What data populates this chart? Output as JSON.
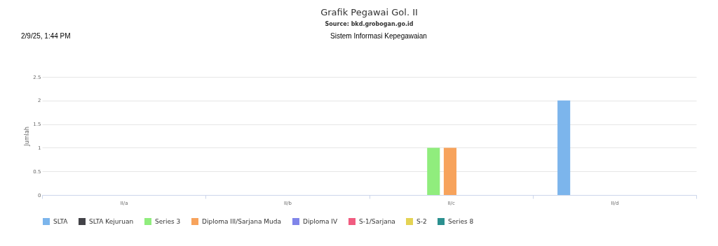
{
  "chart_data": {
    "type": "bar",
    "title": "Grafik Pegawai Gol. II",
    "subtitle": "Source: bkd.grobogan.go.id",
    "ylabel": "Jumlah",
    "annotations": [
      "2/9/25, 1:44 PM",
      "Sistem Informasi Kepegawaian"
    ],
    "categories": [
      "II/a",
      "II/b",
      "II/c",
      "II/d"
    ],
    "series": [
      {
        "name": "SLTA",
        "color": "#7cb5ec",
        "values": [
          0,
          0,
          0,
          2
        ]
      },
      {
        "name": "SLTA Kejuruan",
        "color": "#434348",
        "values": [
          0,
          0,
          0,
          0
        ]
      },
      {
        "name": "Series 3",
        "color": "#90ed7d",
        "values": [
          0,
          0,
          1,
          0
        ]
      },
      {
        "name": "Diploma III/Sarjana Muda",
        "color": "#f7a35c",
        "values": [
          0,
          0,
          1,
          0
        ]
      },
      {
        "name": "Diploma IV",
        "color": "#8085e9",
        "values": [
          0,
          0,
          0,
          0
        ]
      },
      {
        "name": "S-1/Sarjana",
        "color": "#f15c80",
        "values": [
          0,
          0,
          0,
          0
        ]
      },
      {
        "name": "S-2",
        "color": "#e4d354",
        "values": [
          0,
          0,
          0,
          0
        ]
      },
      {
        "name": "Series 8",
        "color": "#2b908f",
        "values": [
          0,
          0,
          0,
          0
        ]
      }
    ],
    "ylim": [
      0,
      2.5
    ],
    "yticks": [
      0,
      0.5,
      1,
      1.5,
      2,
      2.5
    ],
    "grid": "y",
    "legend": "bottom"
  }
}
